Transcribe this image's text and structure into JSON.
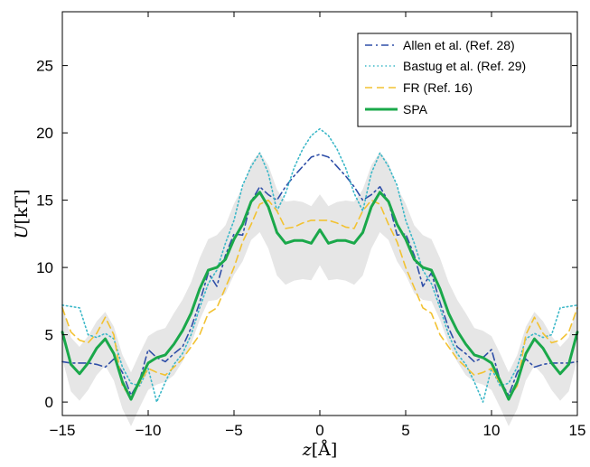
{
  "chart_data": {
    "type": "line",
    "title": "",
    "xlabel": "z[Å]",
    "xlabel_var": "z",
    "xlabel_unit": "[Å]",
    "ylabel": "U[kT]",
    "ylabel_var": "U",
    "ylabel_unit": "[kT]",
    "xlim": [
      -15,
      15
    ],
    "ylim": [
      -1,
      29
    ],
    "xticks": [
      -15,
      -10,
      -5,
      0,
      5,
      10,
      15
    ],
    "xtick_labels": [
      "−15",
      "−10",
      "−5",
      "0",
      "5",
      "10",
      "15"
    ],
    "yticks": [
      0,
      5,
      10,
      15,
      20,
      25
    ],
    "ytick_labels": [
      "0",
      "5",
      "10",
      "15",
      "20",
      "25"
    ],
    "grid": false,
    "legend_position": "top-right",
    "band_color": "#e6e6e6",
    "series": [
      {
        "name": "Allen et al. (Ref. 28)",
        "color": "#2f4fa8",
        "dash": "dashdot",
        "x": [
          -15,
          -14.5,
          -14,
          -13.5,
          -13,
          -12.5,
          -12,
          -11.5,
          -11,
          -10.5,
          -10,
          -9.5,
          -9,
          -8.5,
          -8,
          -7.5,
          -7,
          -6.5,
          -6,
          -5.5,
          -5,
          -4.5,
          -4,
          -3.5,
          -3,
          -2.5,
          -2,
          -1.5,
          -1,
          -0.5,
          0,
          0.5,
          1,
          1.5,
          2,
          2.5,
          3,
          3.5,
          4,
          4.5,
          5,
          5.5,
          6,
          6.5,
          7,
          7.5,
          8,
          8.5,
          9,
          9.5,
          10,
          10.5,
          11,
          11.5,
          12,
          12.5,
          13,
          13.5,
          14,
          14.5,
          15
        ],
        "y": [
          3,
          2.9,
          2.9,
          2.9,
          2.8,
          2.6,
          3.2,
          2.2,
          0.5,
          1.6,
          3.9,
          3.3,
          3.0,
          3.6,
          4.1,
          5.5,
          7.4,
          9.6,
          8.6,
          10.9,
          12.5,
          12.4,
          14.9,
          16.0,
          15.4,
          15.0,
          16.0,
          16.8,
          17.5,
          18.2,
          18.4,
          18.2,
          17.5,
          16.8,
          16.0,
          15.0,
          15.4,
          16.0,
          14.9,
          12.4,
          12.5,
          10.9,
          8.6,
          9.6,
          7.4,
          5.5,
          4.1,
          3.6,
          3.0,
          3.3,
          3.9,
          1.6,
          0.5,
          2.2,
          3.2,
          2.6,
          2.8,
          2.9,
          2.9,
          2.9,
          3
        ]
      },
      {
        "name": "Bastug et al. (Ref. 29)",
        "color": "#3cb8c8",
        "dash": "dotted",
        "x": [
          -15,
          -14.5,
          -14,
          -13.5,
          -13,
          -12.5,
          -12,
          -11.5,
          -11,
          -10.5,
          -10,
          -9.5,
          -9,
          -8.5,
          -8,
          -7.5,
          -7,
          -6.5,
          -6,
          -5.5,
          -5,
          -4.5,
          -4,
          -3.5,
          -3,
          -2.5,
          -2,
          -1.5,
          -1,
          -0.5,
          0,
          0.5,
          1,
          1.5,
          2,
          2.5,
          3,
          3.5,
          4,
          4.5,
          5,
          5.5,
          6,
          6.5,
          7,
          7.5,
          8,
          8.5,
          9,
          9.5,
          10,
          10.5,
          11,
          11.5,
          12,
          12.5,
          13,
          13.5,
          14,
          14.5,
          15
        ],
        "y": [
          7.2,
          7.1,
          7.0,
          5.0,
          4.8,
          5.1,
          4.7,
          2.6,
          1.4,
          1.2,
          2.5,
          0.0,
          1.5,
          2.8,
          3.6,
          5.0,
          7.0,
          8.8,
          9.8,
          11.8,
          13.5,
          16.1,
          17.5,
          18.5,
          17.0,
          14.2,
          15.5,
          17.4,
          18.8,
          19.8,
          20.3,
          19.8,
          18.8,
          17.4,
          15.5,
          14.2,
          17.0,
          18.5,
          17.5,
          16.1,
          13.5,
          11.8,
          9.8,
          8.8,
          7.0,
          5.0,
          3.6,
          2.8,
          1.5,
          0.0,
          2.5,
          1.2,
          1.4,
          2.6,
          4.7,
          5.1,
          4.8,
          5.0,
          7.0,
          7.1,
          7.2
        ]
      },
      {
        "name": "FR (Ref. 16)",
        "color": "#f2c232",
        "dash": "dashed",
        "x": [
          -15,
          -14.5,
          -14,
          -13.5,
          -13,
          -12.5,
          -12,
          -11.5,
          -11,
          -10.5,
          -10,
          -9.5,
          -9,
          -8.5,
          -8,
          -7.5,
          -7,
          -6.5,
          -6,
          -5.5,
          -5,
          -4.5,
          -4,
          -3.5,
          -3,
          -2.5,
          -2,
          -1.5,
          -1,
          -0.5,
          0,
          0.5,
          1,
          1.5,
          2,
          2.5,
          3,
          3.5,
          4,
          4.5,
          5,
          5.5,
          6,
          6.5,
          7,
          7.5,
          8,
          8.5,
          9,
          9.5,
          10,
          10.5,
          11,
          11.5,
          12,
          12.5,
          13,
          13.5,
          14,
          14.5,
          15
        ],
        "y": [
          7.0,
          5.2,
          4.6,
          4.4,
          5.1,
          6.3,
          5.0,
          1.2,
          0.3,
          1.4,
          2.5,
          2.2,
          2.0,
          2.6,
          3.2,
          4.1,
          5.0,
          6.6,
          7.0,
          8.5,
          10.0,
          11.9,
          13.2,
          14.7,
          15.0,
          14.2,
          12.9,
          13.0,
          13.3,
          13.5,
          13.5,
          13.5,
          13.3,
          13.0,
          12.9,
          14.2,
          15.0,
          14.7,
          13.2,
          11.9,
          10.0,
          8.5,
          7.0,
          6.6,
          5.0,
          4.1,
          3.2,
          2.6,
          2.0,
          2.2,
          2.5,
          1.4,
          0.3,
          1.2,
          5.0,
          6.3,
          5.1,
          4.4,
          4.6,
          5.2,
          7.0
        ]
      },
      {
        "name": "SPA",
        "color": "#1aa84a",
        "dash": "solid",
        "x": [
          -15,
          -14.5,
          -14,
          -13.5,
          -13,
          -12.5,
          -12,
          -11.5,
          -11,
          -10.5,
          -10,
          -9.5,
          -9,
          -8.5,
          -8,
          -7.5,
          -7,
          -6.5,
          -6,
          -5.5,
          -5,
          -4.5,
          -4,
          -3.5,
          -3,
          -2.5,
          -2,
          -1.5,
          -1,
          -0.5,
          0,
          0.5,
          1,
          1.5,
          2,
          2.5,
          3,
          3.5,
          4,
          4.5,
          5,
          5.5,
          6,
          6.5,
          7,
          7.5,
          8,
          8.5,
          9,
          9.5,
          10,
          10.5,
          11,
          11.5,
          12,
          12.5,
          13,
          13.5,
          14,
          14.5,
          15
        ],
        "y": [
          5.2,
          2.8,
          2.1,
          2.9,
          4.0,
          4.7,
          3.6,
          1.5,
          0.2,
          1.6,
          2.9,
          3.3,
          3.5,
          4.3,
          5.3,
          6.6,
          8.4,
          9.8,
          10.0,
          10.6,
          12.1,
          13.2,
          14.9,
          15.6,
          14.5,
          12.6,
          11.8,
          12.0,
          12.0,
          11.8,
          12.8,
          11.8,
          12.0,
          12.0,
          11.8,
          12.6,
          14.5,
          15.6,
          14.9,
          13.2,
          12.1,
          10.6,
          10.0,
          9.8,
          8.4,
          6.6,
          5.3,
          4.3,
          3.5,
          3.3,
          2.9,
          1.6,
          0.2,
          1.5,
          3.6,
          4.7,
          4.0,
          2.9,
          2.1,
          2.8,
          5.2
        ]
      }
    ]
  }
}
